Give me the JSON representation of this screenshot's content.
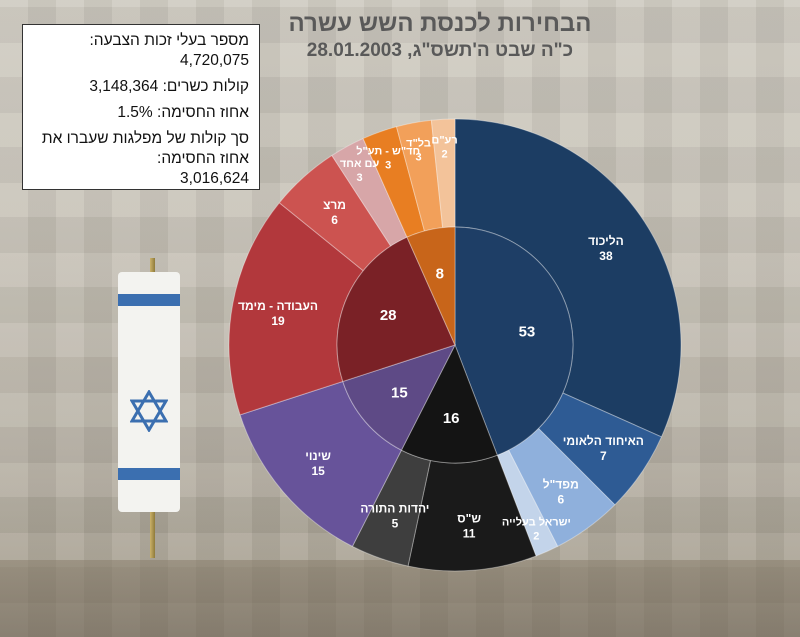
{
  "title": "הבחירות לכנסת השש עשרה",
  "subtitle": "כ\"ה שבט ה'תשס\"ג, 28.01.2003",
  "info": [
    {
      "label": "מספר בעלי זכות הצבעה:",
      "value": "4,720,075"
    },
    {
      "label": "קולות כשרים:",
      "value": "3,148,364"
    },
    {
      "label": "אחוז החסימה:",
      "value": "1.5%"
    },
    {
      "label": "סך קולות של מפלגות שעברו את אחוז החסימה:",
      "value": "3,016,624"
    }
  ],
  "colors": {
    "right": "#1e3e66",
    "haredi": "#1a1a1a",
    "shinui": "#5e4a86",
    "left": "#a8343a",
    "arab": "#e8882e"
  },
  "chart_data": {
    "type": "pie",
    "inner": [
      {
        "name": "",
        "value": 53,
        "color": "#1e3e66"
      },
      {
        "name": "",
        "value": 16,
        "color": "#141414"
      },
      {
        "name": "",
        "value": 15,
        "color": "#5e4a86"
      },
      {
        "name": "",
        "value": 28,
        "color": "#7a2126"
      },
      {
        "name": "",
        "value": 8,
        "color": "#c8651a"
      }
    ],
    "outer": [
      {
        "name": "הליכוד",
        "value": 38,
        "color": "#1c3d63"
      },
      {
        "name": "האיחוד הלאומי",
        "value": 7,
        "color": "#2e5b94"
      },
      {
        "name": "מפד\"ל",
        "value": 6,
        "color": "#8fb0dc"
      },
      {
        "name": "ישראל בעלייה",
        "value": 2,
        "color": "#c3d4ea"
      },
      {
        "name": "ש\"ס",
        "value": 11,
        "color": "#1a1a1a"
      },
      {
        "name": "יהדות התורה",
        "value": 5,
        "color": "#3e3e3e"
      },
      {
        "name": "שינוי",
        "value": 15,
        "color": "#67539a"
      },
      {
        "name": "העבודה - מימד",
        "value": 19,
        "color": "#b2383c"
      },
      {
        "name": "מרצ",
        "value": 6,
        "color": "#cc5350"
      },
      {
        "name": "עם אחד",
        "value": 3,
        "color": "#d7a6a8"
      },
      {
        "name": "חד\"ש - תע\"ל",
        "value": 3,
        "color": "#e87e22"
      },
      {
        "name": "בל\"ד",
        "value": 3,
        "color": "#f2a05a"
      },
      {
        "name": "רע\"ם",
        "value": 2,
        "color": "#f3c39a"
      }
    ]
  }
}
